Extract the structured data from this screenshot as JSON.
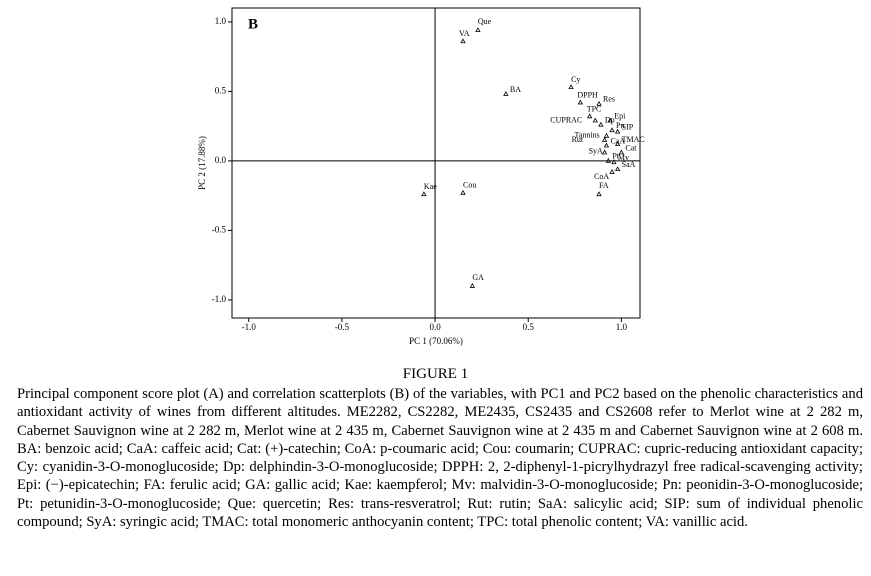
{
  "chart_data": {
    "type": "scatter",
    "panel_label": "B",
    "x_label": "PC 1 (70.06%)",
    "y_label": "PC 2 (17.88%)",
    "xlim": [
      -1.09,
      1.1
    ],
    "ylim": [
      -1.13,
      1.1
    ],
    "xticks": [
      {
        "value": -1,
        "label": "-1.0"
      },
      -0.5,
      {
        "value": 0,
        "label": "0.0"
      },
      0.5,
      {
        "value": 1,
        "label": "1.0"
      }
    ],
    "yticks": [
      {
        "value": 1,
        "label": "1.0"
      },
      0.5,
      {
        "value": 0,
        "label": "0.0"
      },
      -0.5,
      {
        "value": -1,
        "label": "-1.0"
      }
    ],
    "zero_lines": true,
    "color": "#000000",
    "series": [
      {
        "labels": [
          "VA",
          "Que",
          "BA",
          "Cy",
          "DPPH",
          "Res",
          "TPC",
          "CUPRAC",
          "Epi",
          "Dp",
          "Pn",
          "SIP",
          "Tannins",
          "Rut",
          "CaA",
          "TMAC",
          "Cat",
          "SyA",
          "Pt",
          "Mv",
          "SaA",
          "CoA",
          "FA",
          "Kae",
          "Cou",
          "GA"
        ],
        "x": [
          0.15,
          0.23,
          0.38,
          0.73,
          0.78,
          0.88,
          0.83,
          0.86,
          0.94,
          0.89,
          0.95,
          0.98,
          0.92,
          0.91,
          0.92,
          0.98,
          1.0,
          0.91,
          0.93,
          0.96,
          0.98,
          0.95,
          0.88,
          -0.06,
          0.15,
          0.2
        ],
        "values": [
          0.86,
          0.94,
          0.48,
          0.53,
          0.42,
          0.41,
          0.32,
          0.29,
          0.29,
          0.26,
          0.22,
          0.21,
          0.18,
          0.15,
          0.11,
          0.12,
          0.06,
          0.06,
          0.0,
          -0.01,
          -0.06,
          -0.08,
          -0.24,
          -0.24,
          -0.23,
          -0.9
        ]
      }
    ]
  },
  "figure_label": "FIGURE 1",
  "caption": "Principal component score plot (A) and correlation scatterplots (B) of the variables, with PC1 and PC2 based on the phenolic characteristics and antioxidant activity of wines from different altitudes. ME2282, CS2282, ME2435, CS2435 and CS2608 refer to Merlot wine at 2 282 m, Cabernet Sauvignon wine at 2 282 m, Merlot wine at 2 435 m, Cabernet Sauvignon wine at 2 435 m and Cabernet Sauvignon wine at 2 608 m. BA: benzoic acid; CaA: caffeic acid; Cat: (+)-catechin; CoA: p-coumaric acid; Cou: coumarin; CUPRAC: cupric-reducing antioxidant capacity; Cy: cyanidin-3-O-monoglucoside; Dp: delphindin-3-O-monoglucoside; DPPH: 2, 2-diphenyl-1-picrylhydrazyl free radical-scavenging activity; Epi: (−)-epicatechin; FA: ferulic acid; GA: gallic acid; Kae: kaempferol; Mv: malvidin-3-O-monoglucoside; Pn: peonidin-3-O-monoglucoside; Pt: petunidin-3-O-monoglucoside; Que: quercetin; Res: trans-resveratrol; Rut: rutin; SaA: salicylic acid; SIP: sum of individual phenolic compound; SyA: syringic acid; TMAC: total monomeric anthocyanin content; TPC: total phenolic content; VA: vanillic acid."
}
